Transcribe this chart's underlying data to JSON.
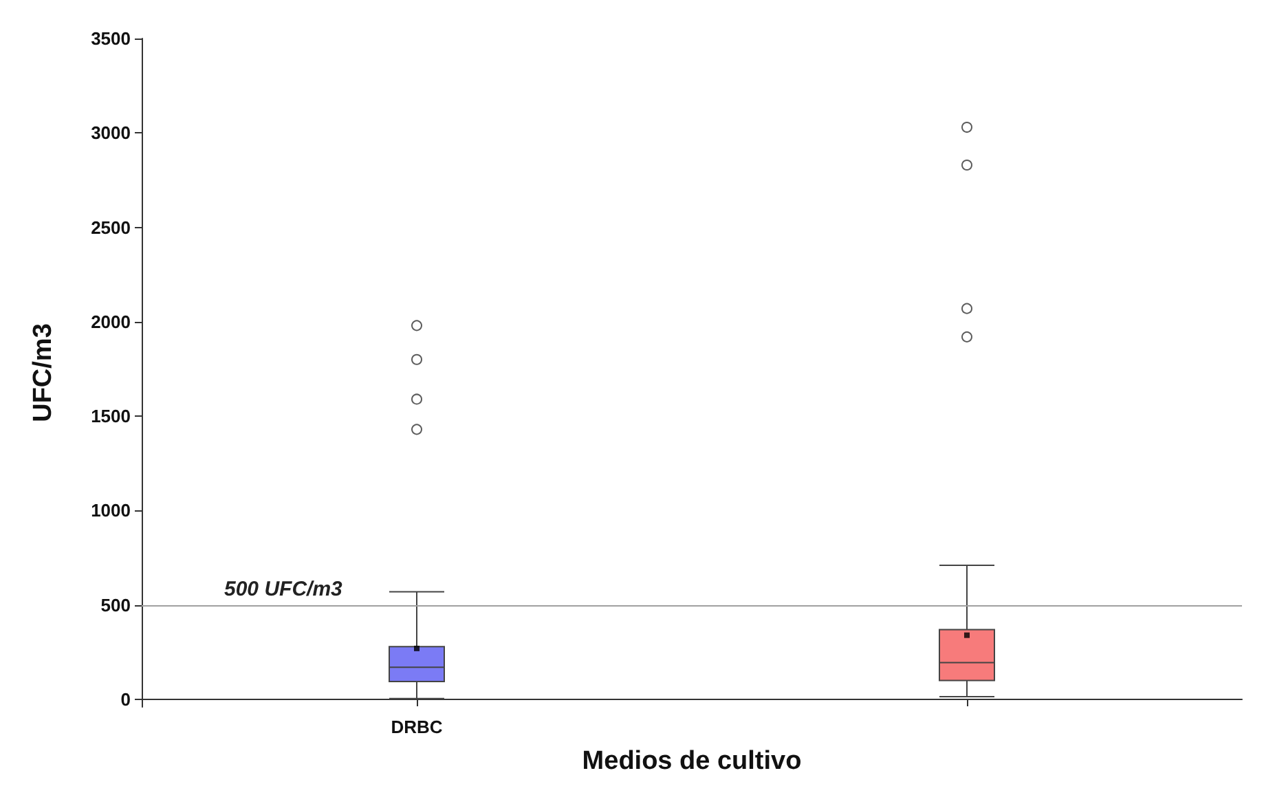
{
  "chart_data": {
    "type": "box",
    "xlabel": "Medios de cultivo",
    "ylabel": "UFC/m3",
    "categories": [
      "DRBC",
      null
    ],
    "colors": [
      "#7b7bf5",
      "#f77b7b"
    ],
    "boxes": [
      {
        "low": 5,
        "q1": 95,
        "median": 170,
        "q3": 280,
        "high": 570,
        "mean": 270,
        "outliers": [
          1430,
          1590,
          1800,
          1980
        ]
      },
      {
        "low": 15,
        "q1": 100,
        "median": 195,
        "q3": 370,
        "high": 710,
        "mean": 340,
        "outliers": [
          1920,
          2070,
          2830,
          3030
        ]
      }
    ],
    "ylim": [
      -40,
      3500
    ],
    "yticks": [
      0,
      500,
      1000,
      1500,
      2000,
      2500,
      3000,
      3500
    ],
    "ref_lines": [
      {
        "axis": "y",
        "value": 500,
        "label": "500 UFC/m3",
        "color": "#a0a0a0"
      }
    ]
  }
}
